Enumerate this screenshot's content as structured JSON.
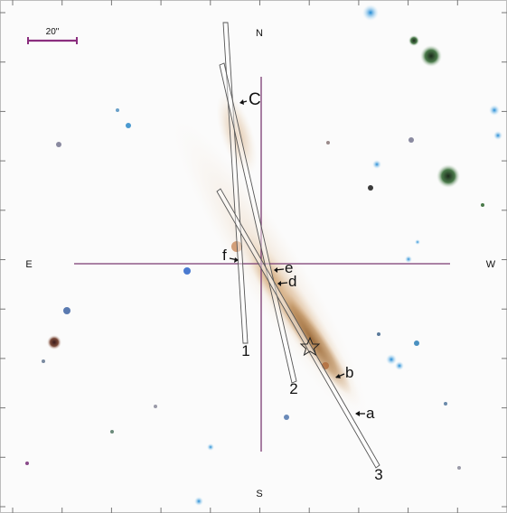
{
  "image": {
    "compass": {
      "north": "N",
      "south": "S",
      "east": "E",
      "west": "W"
    },
    "scale_bar": {
      "label": "20\""
    },
    "slits": [
      {
        "label": "1"
      },
      {
        "label": "2"
      },
      {
        "label": "3"
      }
    ],
    "knots": [
      {
        "label": "a"
      },
      {
        "label": "b"
      },
      {
        "label": "C"
      },
      {
        "label": "d"
      },
      {
        "label": "e"
      },
      {
        "label": "f"
      }
    ],
    "colors": {
      "crosshair": "#7a3a72",
      "scale_bar": "#8a2e7e",
      "galaxy_core": "#a87a4a",
      "galaxy_halo": "#d9b48a",
      "star_blue": "#2a8fd0",
      "star_dark": "#2a3a2a"
    },
    "icons": [
      "star-marker-icon",
      "arrow-icon"
    ]
  }
}
